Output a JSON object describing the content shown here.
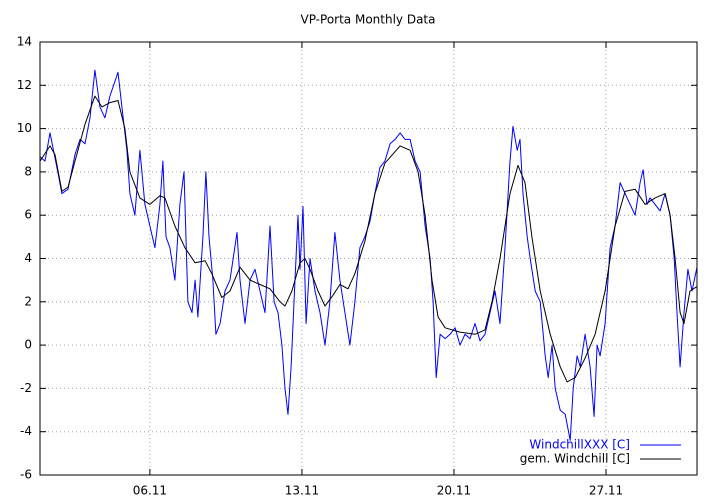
{
  "chart_data": {
    "type": "line",
    "title": "VP-Porta Monthly Data",
    "xlim": [
      0.94,
      31.19
    ],
    "ylim": [
      -6,
      14
    ],
    "xticks": [
      {
        "value": 6,
        "label": "06.11"
      },
      {
        "value": 13,
        "label": "13.11"
      },
      {
        "value": 20,
        "label": "20.11"
      },
      {
        "value": 27,
        "label": "27.11"
      }
    ],
    "yticks": [
      -6,
      -4,
      -2,
      0,
      2,
      4,
      6,
      8,
      10,
      12,
      14
    ],
    "grid": true,
    "legend": "bottom-right",
    "series": [
      {
        "name": "WindchillXXX [C]",
        "color": "#0000ff",
        "x": [
          0.94,
          1.17,
          1.4,
          1.76,
          1.95,
          2.23,
          2.55,
          2.78,
          3.01,
          3.24,
          3.47,
          3.7,
          3.93,
          4.16,
          4.53,
          4.71,
          4.94,
          5.08,
          5.31,
          5.54,
          5.77,
          6.0,
          6.23,
          6.46,
          6.6,
          6.74,
          6.92,
          7.15,
          7.38,
          7.57,
          7.75,
          7.94,
          8.08,
          8.21,
          8.44,
          8.58,
          8.72,
          8.9,
          9.04,
          9.23,
          9.46,
          9.69,
          10.01,
          10.15,
          10.38,
          10.61,
          10.84,
          11.07,
          11.3,
          11.53,
          11.72,
          11.9,
          12.08,
          12.22,
          12.36,
          12.5,
          12.68,
          12.82,
          12.91,
          13.05,
          13.19,
          13.37,
          13.6,
          13.83,
          14.06,
          14.29,
          14.52,
          14.75,
          14.98,
          15.21,
          15.44,
          15.67,
          15.9,
          16.13,
          16.36,
          16.59,
          16.82,
          17.06,
          17.29,
          17.52,
          17.75,
          17.98,
          18.21,
          18.44,
          18.67,
          18.9,
          19.04,
          19.18,
          19.36,
          19.59,
          19.82,
          20.05,
          20.28,
          20.51,
          20.74,
          20.97,
          21.2,
          21.43,
          21.66,
          21.89,
          22.12,
          22.35,
          22.58,
          22.72,
          22.91,
          23.04,
          23.18,
          23.37,
          23.51,
          23.74,
          23.97,
          24.2,
          24.34,
          24.52,
          24.66,
          24.89,
          25.12,
          25.35,
          25.49,
          25.67,
          25.81,
          26.04,
          26.27,
          26.45,
          26.59,
          26.73,
          26.96,
          27.19,
          27.42,
          27.65,
          27.88,
          28.11,
          28.34,
          28.57,
          28.71,
          28.89,
          29.03,
          29.26,
          29.49,
          29.72,
          29.95,
          30.14,
          30.27,
          30.41,
          30.59,
          30.77,
          30.96,
          31.19
        ],
        "values": [
          8.7,
          8.5,
          9.8,
          8.0,
          7.0,
          7.2,
          8.8,
          9.5,
          9.3,
          10.5,
          12.7,
          11,
          10.5,
          11.5,
          12.6,
          11,
          9,
          7,
          6,
          9,
          6.5,
          5.5,
          4.5,
          6.5,
          8.5,
          5.0,
          4.5,
          3.0,
          6.5,
          8.0,
          2,
          1.5,
          3,
          1.3,
          5,
          8,
          5,
          3,
          0.5,
          1,
          2.5,
          3,
          5.2,
          3.0,
          1,
          3,
          3.5,
          2.5,
          1.5,
          5.5,
          2.0,
          1.5,
          0,
          -2.0,
          -3.2,
          -1,
          3,
          6,
          3.5,
          6.4,
          1,
          4,
          2.5,
          1.5,
          0,
          2,
          5.2,
          3,
          1.5,
          0,
          2,
          4.5,
          5,
          5.7,
          7,
          8.2,
          8.5,
          9.3,
          9.5,
          9.8,
          9.5,
          9.5,
          8.5,
          8,
          5.5,
          4,
          2,
          -1.5,
          0.5,
          0.3,
          0.5,
          0.8,
          0,
          0.5,
          0.3,
          1.0,
          0.2,
          0.5,
          1.5,
          2.5,
          1,
          4.5,
          8.5,
          10.1,
          9,
          9.5,
          7,
          5,
          4,
          2.5,
          2,
          -0.5,
          -1.5,
          0,
          -2.0,
          -3.0,
          -3.2,
          -4.4,
          -2,
          -0.5,
          -1,
          0.5,
          -1,
          -3.3,
          0,
          -0.5,
          1,
          4.5,
          5.5,
          7.5,
          7,
          6.5,
          6,
          7.5,
          8.1,
          6.5,
          6.8,
          6.5,
          6.2,
          7.0,
          6.0,
          4,
          1.5,
          -1.0,
          1.5,
          3.5,
          2.5,
          3.6
        ]
      },
      {
        "name": "gem. Windchill [C]",
        "color": "#000000",
        "x": [
          0.94,
          1.4,
          1.63,
          1.95,
          2.23,
          2.55,
          3.01,
          3.47,
          3.79,
          4.16,
          4.53,
          4.85,
          5.08,
          5.54,
          6.0,
          6.46,
          6.69,
          7.15,
          7.61,
          8.08,
          8.54,
          8.85,
          9.31,
          9.69,
          10.15,
          10.61,
          11.07,
          11.53,
          11.99,
          12.22,
          12.54,
          12.91,
          13.14,
          13.37,
          13.74,
          14.06,
          14.43,
          14.75,
          15.12,
          15.44,
          15.9,
          16.36,
          16.82,
          17.52,
          17.98,
          18.35,
          18.67,
          18.99,
          19.27,
          19.59,
          20.28,
          20.97,
          21.43,
          21.75,
          22.12,
          22.58,
          22.95,
          23.27,
          23.59,
          23.97,
          24.43,
          24.89,
          25.21,
          25.58,
          26.04,
          26.5,
          26.96,
          27.42,
          27.88,
          28.34,
          28.8,
          29.26,
          29.72,
          29.95,
          30.18,
          30.41,
          30.59,
          30.87,
          31.19
        ],
        "values": [
          8.5,
          9.2,
          8.8,
          7.1,
          7.3,
          8.5,
          10.2,
          11.5,
          11.0,
          11.2,
          11.3,
          10.0,
          8.0,
          6.8,
          6.5,
          6.9,
          6.8,
          5.5,
          4.5,
          3.8,
          3.9,
          3.3,
          2.2,
          2.5,
          3.6,
          3.0,
          2.8,
          2.6,
          2.0,
          1.8,
          2.5,
          3.8,
          4.0,
          3.5,
          2.5,
          1.8,
          2.3,
          2.8,
          2.6,
          3.3,
          4.8,
          7.0,
          8.4,
          9.2,
          9.0,
          8.0,
          6.0,
          3.0,
          1.3,
          0.8,
          0.6,
          0.5,
          0.7,
          2,
          4,
          7.0,
          8.3,
          7.5,
          5,
          2.5,
          0.5,
          -1.0,
          -1.7,
          -1.5,
          -0.6,
          0.5,
          2.5,
          5.5,
          7.1,
          7.2,
          6.5,
          6.8,
          7.0,
          6.0,
          4,
          1.5,
          1.0,
          2.5,
          2.7
        ]
      }
    ]
  }
}
